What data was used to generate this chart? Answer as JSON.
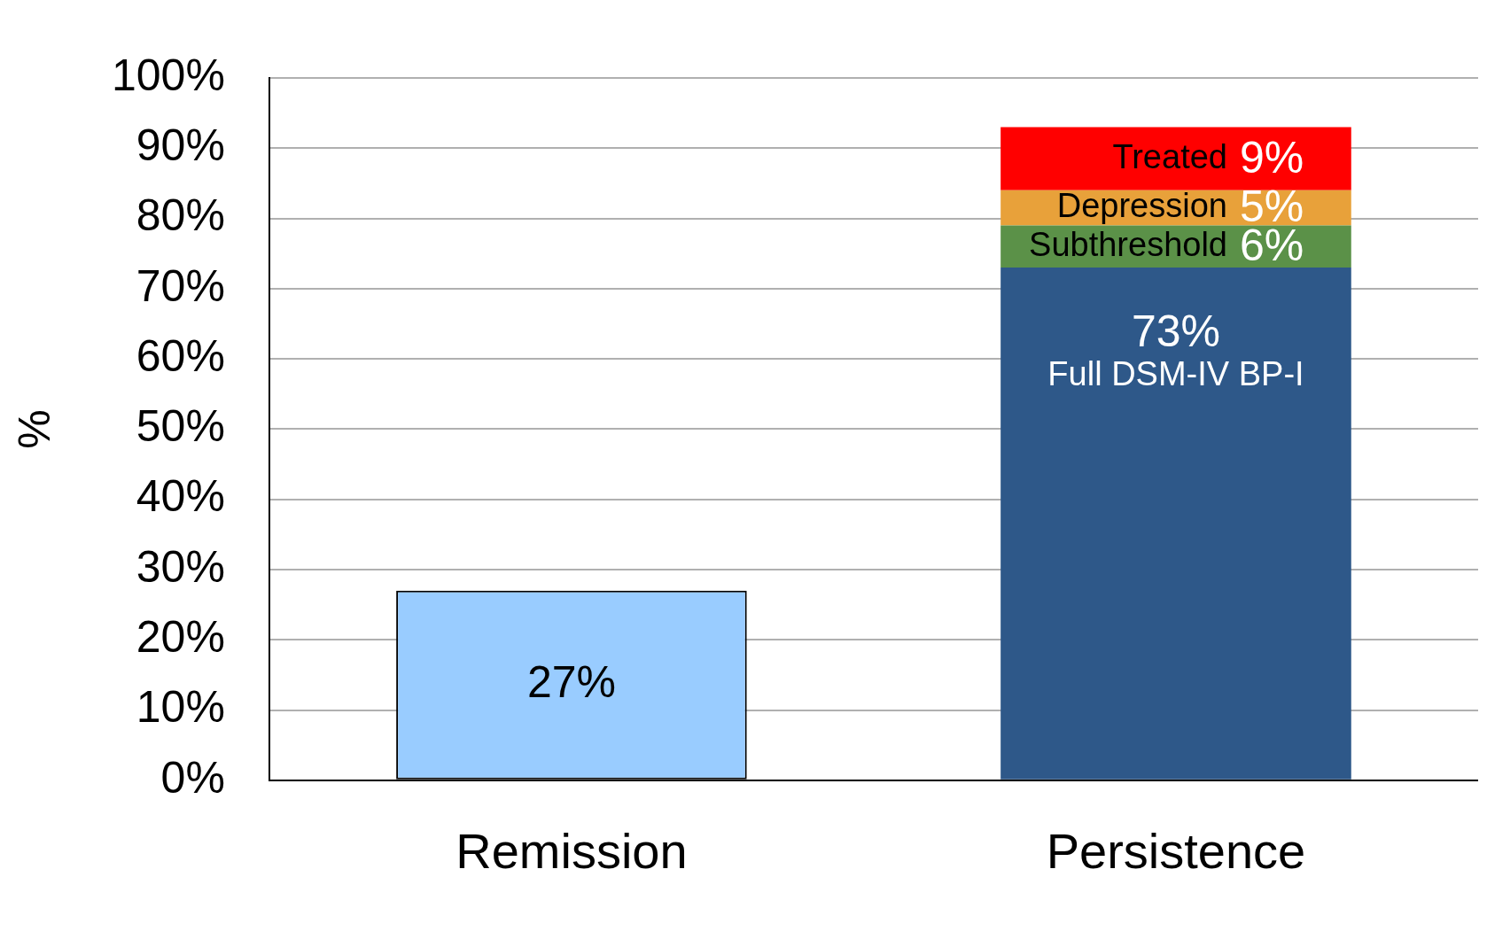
{
  "chart_data": {
    "type": "bar",
    "stacked": true,
    "ylabel": "%",
    "categories": [
      "Remission",
      "Persistence"
    ],
    "ylim": [
      0,
      100
    ],
    "yticks": [
      {
        "value": 0,
        "label": "0%"
      },
      {
        "value": 10,
        "label": "10%"
      },
      {
        "value": 20,
        "label": "20%"
      },
      {
        "value": 30,
        "label": "30%"
      },
      {
        "value": 40,
        "label": "40%"
      },
      {
        "value": 50,
        "label": "50%"
      },
      {
        "value": 60,
        "label": "60%"
      },
      {
        "value": 70,
        "label": "70%"
      },
      {
        "value": 80,
        "label": "80%"
      },
      {
        "value": 90,
        "label": "90%"
      },
      {
        "value": 100,
        "label": "100%"
      }
    ],
    "grid": "y",
    "legend": false,
    "series": [
      {
        "color": "#99ccff",
        "values": [
          27,
          null
        ],
        "value_labels": [
          "27%",
          null
        ]
      },
      {
        "name": "Full DSM-IV BP-I",
        "color": "#2e5889",
        "values": [
          null,
          73
        ],
        "value_labels": [
          null,
          "73%"
        ]
      },
      {
        "name": "Subthreshold",
        "color": "#5b9148",
        "values": [
          null,
          6
        ],
        "value_labels": [
          null,
          "6%"
        ]
      },
      {
        "name": "Depression",
        "color": "#e8a13a",
        "values": [
          null,
          5
        ],
        "value_labels": [
          null,
          "5%"
        ]
      },
      {
        "name": "Treated",
        "color": "#ff0000",
        "values": [
          null,
          9
        ],
        "value_labels": [
          null,
          "9%"
        ]
      }
    ]
  }
}
